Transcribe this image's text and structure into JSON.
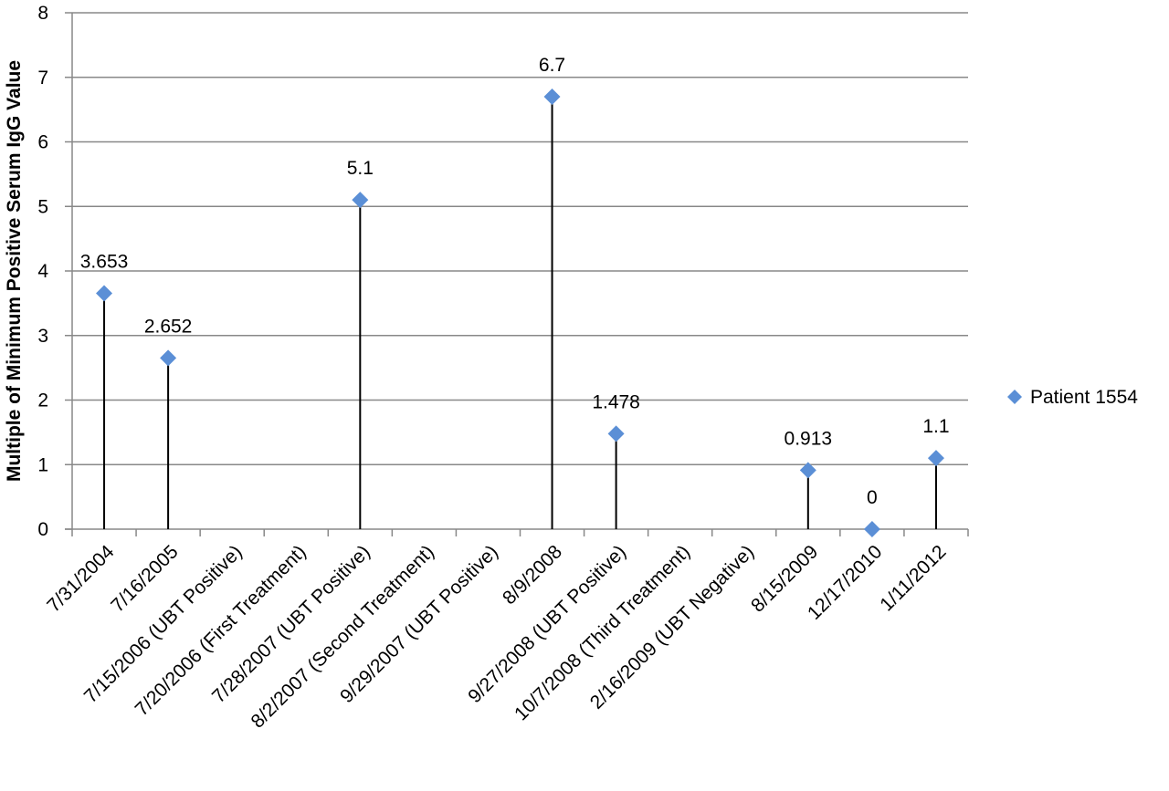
{
  "chart_data": {
    "type": "scatter",
    "title": "",
    "xlabel": "",
    "ylabel": "Multiple of Minimum Positive Serum  IgG Value",
    "ylim": [
      0,
      8
    ],
    "y_ticks": [
      "0",
      "1",
      "2",
      "3",
      "4",
      "5",
      "6",
      "7",
      "8"
    ],
    "grid": "horizontal",
    "legend_position": "right",
    "categories": [
      "7/31/2004",
      "7/16/2005",
      "7/15/2006 (UBT Positive)",
      "7/20/2006 (First Treatment)",
      "7/28/2007 (UBT Positive)",
      "8/2/2007 (Second Treatment)",
      "9/29/2007 (UBT Positive)",
      "8/9/2008",
      "9/27/2008 (UBT Positive)",
      "10/7/2008 (Third Treatment)",
      "2/16/2009 (UBT Negative)",
      "8/15/2009",
      "12/17/2010",
      "1/11/2012"
    ],
    "series": [
      {
        "name": "Patient 1554",
        "color": "#5b8fd6",
        "marker": "diamond",
        "drop_lines": true,
        "values": [
          3.653,
          2.652,
          null,
          null,
          5.1,
          null,
          null,
          6.7,
          1.478,
          null,
          null,
          0.913,
          0,
          1.1
        ],
        "labels": [
          "3.653",
          "2.652",
          "",
          "",
          "5.1",
          "",
          "",
          "6.7",
          "1.478",
          "",
          "",
          "0.913",
          "0",
          "1.1"
        ]
      }
    ]
  }
}
